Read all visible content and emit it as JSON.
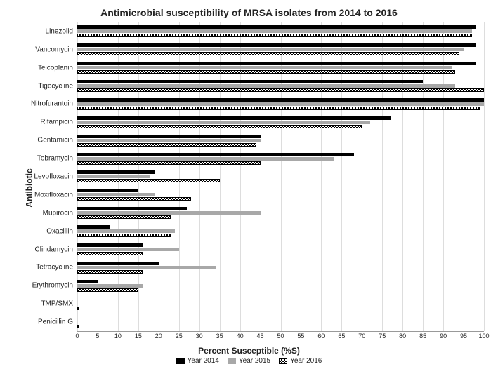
{
  "chart": {
    "type": "horizontal_grouped_bar",
    "title": "Antimicrobial susceptibility of MRSA isolates from 2014 to 2016",
    "y_axis_title": "Antibiotic",
    "x_axis_title": "Percent Susceptible (%S)",
    "x_min": 0,
    "x_max": 100,
    "x_tick_step": 5,
    "background_color": "#ffffff",
    "grid_color": "#dddddd",
    "title_fontsize": 14,
    "axis_title_fontsize": 12,
    "label_fontsize": 10,
    "tick_fontsize": 9,
    "series": [
      {
        "key": "y2014",
        "label": "Year 2014",
        "fill": "#000000",
        "pattern": "solid"
      },
      {
        "key": "y2015",
        "label": "Year 2015",
        "fill": "#a8a8a8",
        "pattern": "solid"
      },
      {
        "key": "y2016",
        "label": "Year 2016",
        "fill": "#ffffff",
        "pattern": "checker",
        "border": "#000000"
      }
    ],
    "antibiotics": [
      {
        "name": "Linezolid",
        "y2014": 98,
        "y2015": 97,
        "y2016": 97
      },
      {
        "name": "Vancomycin",
        "y2014": 98,
        "y2015": 95,
        "y2016": 94
      },
      {
        "name": "Teicoplanin",
        "y2014": 98,
        "y2015": 92,
        "y2016": 93
      },
      {
        "name": "Tigecycline",
        "y2014": 85,
        "y2015": 93,
        "y2016": 100
      },
      {
        "name": "Nitrofurantoin",
        "y2014": 100,
        "y2015": 100,
        "y2016": 99
      },
      {
        "name": "Rifampicin",
        "y2014": 77,
        "y2015": 72,
        "y2016": 70
      },
      {
        "name": "Gentamicin",
        "y2014": 45,
        "y2015": 45,
        "y2016": 44
      },
      {
        "name": "Tobramycin",
        "y2014": 68,
        "y2015": 63,
        "y2016": 45
      },
      {
        "name": "Levofloxacin",
        "y2014": 19,
        "y2015": 18,
        "y2016": 35
      },
      {
        "name": "Moxifloxacin",
        "y2014": 15,
        "y2015": 19,
        "y2016": 28
      },
      {
        "name": "Mupirocin",
        "y2014": 27,
        "y2015": 45,
        "y2016": 23
      },
      {
        "name": "Oxacillin",
        "y2014": 8,
        "y2015": 24,
        "y2016": 23
      },
      {
        "name": "Clindamycin",
        "y2014": 16,
        "y2015": 25,
        "y2016": 16
      },
      {
        "name": "Tetracycline",
        "y2014": 20,
        "y2015": 34,
        "y2016": 16
      },
      {
        "name": "Erythromycin",
        "y2014": 5,
        "y2015": 16,
        "y2016": 15
      },
      {
        "name": "TMP/SMX",
        "y2014": 0,
        "y2015": 0,
        "y2016": 0
      },
      {
        "name": "Penicillin G",
        "y2014": 0,
        "y2015": 0,
        "y2016": 0
      }
    ]
  }
}
